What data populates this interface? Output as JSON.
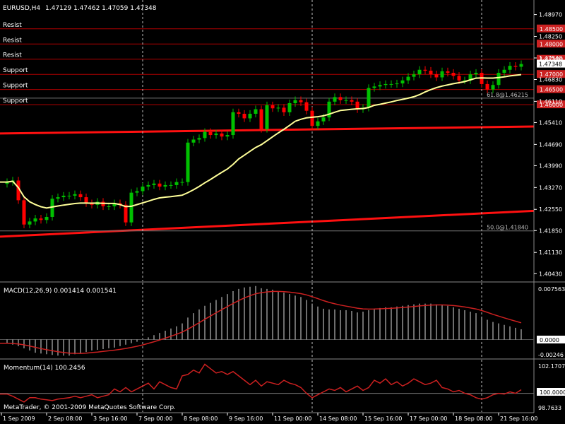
{
  "header": {
    "title": "EURUSD,H4",
    "ohlc": "1.47129 1.47462 1.47059 1.47348"
  },
  "price_levels": [
    {
      "label": "Resist",
      "tag": "1.48500",
      "price": 1.485
    },
    {
      "label": "Resist",
      "tag": "1.48000",
      "price": 1.48
    },
    {
      "label": "Resist",
      "tag": "1.47500",
      "price": 1.475
    },
    {
      "label": "Support",
      "tag": "1.47000",
      "price": 1.47
    },
    {
      "label": "Support",
      "tag": "1.46500",
      "price": 1.465
    },
    {
      "label": "Support",
      "tag": "1.46000",
      "price": 1.46
    }
  ],
  "fibo": [
    {
      "text": "61.8@1.46215",
      "price": 1.46215
    },
    {
      "text": "50.0@1.41840",
      "price": 1.4184
    }
  ],
  "current_price": "1.47348",
  "macd": {
    "title": "MACD(12,26,9) 0.001414 0.001541",
    "axis_top": "0.007563",
    "axis_zero": "0.0000",
    "axis_bottom": "-0.00246"
  },
  "momentum": {
    "title": "Momentum(14) 100.2456",
    "axis_top": "102.1707",
    "axis_mid": "100.0000",
    "axis_bottom": "98.7633"
  },
  "copyright": "MetaTrader, © 2001-2009 MetaQuotes Software Corp.",
  "colors": {
    "background": "#000000",
    "bull": "#00c000",
    "bear": "#ff0000",
    "ma": "#ffff99",
    "level_line": "#b00000",
    "tag_bg": "#cc2222",
    "macd_line": "#cc2020",
    "momentum_line": "#cc2020",
    "grid": "#ffffff",
    "text": "#ffffff"
  },
  "chart_data": {
    "type": "candlestick",
    "symbol": "EURUSD",
    "timeframe": "H4",
    "y_ticks": [
      "1.48970",
      "1.48250",
      "1.47540",
      "1.46830",
      "1.46110",
      "1.45410",
      "1.44690",
      "1.43990",
      "1.43270",
      "1.42550",
      "1.41850",
      "1.41130",
      "1.40430"
    ],
    "y_tick_values": [
      1.4897,
      1.4825,
      1.4754,
      1.4683,
      1.4611,
      1.4541,
      1.4469,
      1.4399,
      1.4327,
      1.4255,
      1.4185,
      1.4113,
      1.4043
    ],
    "ylim": [
      1.4018,
      1.4945
    ],
    "x_labels": [
      "1 Sep 2009",
      "2 Sep 08:00",
      "3 Sep 16:00",
      "7 Sep 00:00",
      "8 Sep 08:00",
      "9 Sep 16:00",
      "11 Sep 00:00",
      "14 Sep 08:00",
      "15 Sep 16:00",
      "17 Sep 00:00",
      "18 Sep 08:00",
      "21 Sep 16:00"
    ],
    "x_label_bars": [
      0,
      8,
      16,
      24,
      32,
      40,
      48,
      56,
      64,
      72,
      80,
      88
    ],
    "day_separators_bars": [
      24,
      54,
      84
    ],
    "closes": [
      1.4345,
      1.435,
      1.4285,
      1.4205,
      1.4215,
      1.4225,
      1.422,
      1.423,
      1.429,
      1.4295,
      1.43,
      1.43,
      1.4305,
      1.4295,
      1.4275,
      1.427,
      1.428,
      1.4265,
      1.4265,
      1.4275,
      1.427,
      1.4212,
      1.431,
      1.4315,
      1.433,
      1.4335,
      1.434,
      1.433,
      1.4335,
      1.4335,
      1.4345,
      1.4345,
      1.4475,
      1.4485,
      1.449,
      1.451,
      1.45,
      1.4505,
      1.4495,
      1.45,
      1.4575,
      1.457,
      1.4555,
      1.457,
      1.4585,
      1.452,
      1.4598,
      1.4588,
      1.459,
      1.4575,
      1.4605,
      1.4615,
      1.4608,
      1.458,
      1.453,
      1.4545,
      1.4558,
      1.461,
      1.4625,
      1.4615,
      1.4615,
      1.461,
      1.4585,
      1.459,
      1.4655,
      1.466,
      1.4665,
      1.4668,
      1.4668,
      1.467,
      1.468,
      1.4692,
      1.47,
      1.4715,
      1.4712,
      1.47,
      1.469,
      1.471,
      1.4705,
      1.4695,
      1.468,
      1.468,
      1.47,
      1.4705,
      1.4668,
      1.465,
      1.4665,
      1.4705,
      1.4715,
      1.4728,
      1.4725,
      1.4734
    ],
    "ma_label": "MA",
    "trendlines": [
      {
        "from": [
          0,
          1.4505
        ],
        "to": [
          100,
          1.4528
        ]
      },
      {
        "from": [
          0,
          1.4165
        ],
        "to": [
          100,
          1.425
        ]
      }
    ],
    "macd_hist": [
      -0.0005,
      -0.0007,
      -0.0009,
      -0.0012,
      -0.0015,
      -0.0018,
      -0.0019,
      -0.002,
      -0.0021,
      -0.0022,
      -0.0022,
      -0.0022,
      -0.002,
      -0.0019,
      -0.0017,
      -0.0015,
      -0.0014,
      -0.0013,
      -0.0012,
      -0.0011,
      -0.0009,
      -0.0007,
      -0.0005,
      -0.0003,
      0.0,
      0.0003,
      0.0006,
      0.0009,
      0.0012,
      0.0015,
      0.0018,
      0.0022,
      0.003,
      0.0036,
      0.0041,
      0.0046,
      0.005,
      0.0054,
      0.0058,
      0.0062,
      0.0066,
      0.0069,
      0.0071,
      0.0072,
      0.0073,
      0.007,
      0.0069,
      0.0068,
      0.0066,
      0.0064,
      0.0062,
      0.006,
      0.0058,
      0.0054,
      0.0049,
      0.0045,
      0.0042,
      0.0041,
      0.0041,
      0.004,
      0.004,
      0.0039,
      0.0037,
      0.0038,
      0.004,
      0.0042,
      0.0043,
      0.0044,
      0.0044,
      0.0045,
      0.0046,
      0.0047,
      0.0048,
      0.0049,
      0.0049,
      0.0049,
      0.0048,
      0.0047,
      0.0046,
      0.0044,
      0.0042,
      0.004,
      0.0038,
      0.0036,
      0.0031,
      0.0027,
      0.0024,
      0.0022,
      0.002,
      0.0018,
      0.0016,
      0.0014
    ],
    "macd_ylim": [
      -0.00246,
      0.007563
    ],
    "momentum": [
      99.95,
      99.8,
      99.6,
      99.4,
      99.7,
      99.7,
      99.6,
      99.55,
      99.5,
      99.6,
      99.65,
      99.7,
      99.8,
      99.7,
      99.8,
      99.9,
      99.7,
      99.8,
      99.9,
      100.3,
      100.1,
      100.4,
      100.1,
      100.3,
      100.5,
      100.7,
      100.3,
      100.8,
      100.6,
      100.4,
      100.3,
      101.2,
      101.3,
      101.6,
      101.4,
      102.0,
      101.7,
      101.4,
      101.5,
      101.3,
      101.5,
      101.2,
      100.9,
      100.6,
      100.9,
      100.5,
      100.8,
      100.7,
      100.6,
      100.9,
      100.7,
      100.6,
      100.4,
      100.0,
      99.7,
      99.9,
      100.1,
      100.3,
      100.2,
      100.4,
      100.1,
      100.3,
      100.5,
      100.2,
      100.4,
      100.9,
      100.7,
      101.0,
      100.6,
      100.8,
      100.5,
      100.7,
      101.0,
      100.8,
      100.6,
      100.7,
      100.9,
      100.4,
      100.3,
      100.1,
      100.2,
      100.0,
      99.9,
      99.7,
      99.6,
      99.7,
      99.9,
      100.0,
      99.95,
      100.1,
      100.0,
      100.25
    ],
    "momentum_ylim": [
      98.7633,
      102.1707
    ]
  }
}
